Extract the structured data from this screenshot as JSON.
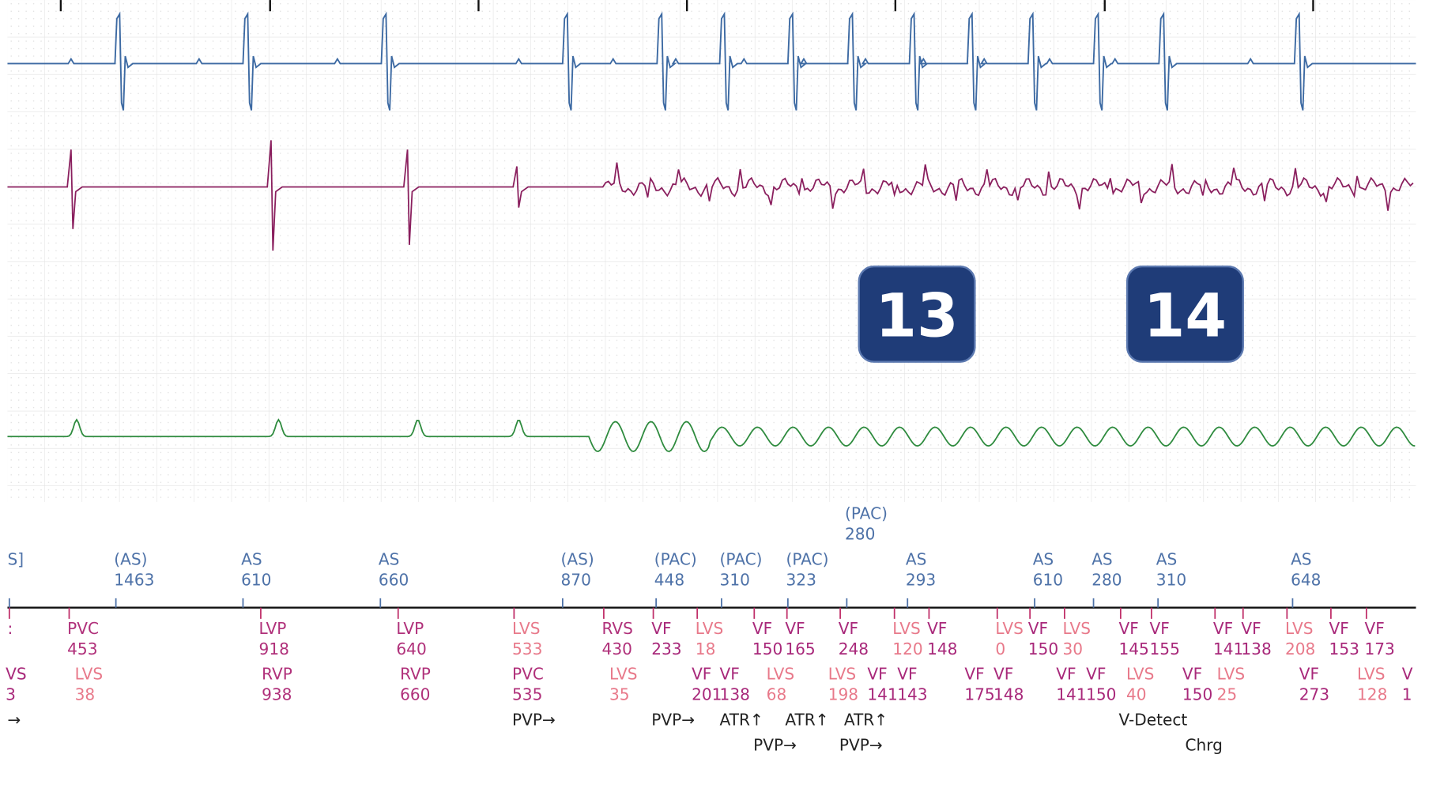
{
  "badges": [
    "13",
    "14"
  ],
  "atrial": [
    {
      "label": "S]"
    },
    {
      "label": "(AS)",
      "value": 1463
    },
    {
      "label": "AS",
      "value": 610
    },
    {
      "label": "AS",
      "value": 660
    },
    {
      "label": "(AS)",
      "value": 870
    },
    {
      "label": "(PAC)",
      "value": 448
    },
    {
      "label": "(PAC)",
      "value": 310
    },
    {
      "label": "(PAC)",
      "value": 323
    },
    {
      "label": "(PAC)",
      "value": 280
    },
    {
      "label": "AS",
      "value": 293
    },
    {
      "label": "AS",
      "value": 610
    },
    {
      "label": "AS",
      "value": 280
    },
    {
      "label": "AS",
      "value": 310
    },
    {
      "label": "AS",
      "value": 648
    }
  ],
  "ventricular_1": [
    {
      "label": ":"
    },
    {
      "label": "PVC",
      "value": 453
    },
    {
      "label": "LVP",
      "value": 918
    },
    {
      "label": "LVP",
      "value": 640
    },
    {
      "label": "LVS",
      "value": 533
    },
    {
      "label": "RVS",
      "value": 430
    },
    {
      "label": "VF",
      "value": 233
    },
    {
      "label": "LVS",
      "value": 18
    },
    {
      "label": "VF",
      "value": 150
    },
    {
      "label": "VF",
      "value": 165
    },
    {
      "label": "VF",
      "value": 248
    },
    {
      "label": "LVS",
      "value": 120
    },
    {
      "label": "VF",
      "value": 148
    },
    {
      "label": "LVS",
      "value": 0
    },
    {
      "label": "VF",
      "value": 150
    },
    {
      "label": "LVS",
      "value": 30
    },
    {
      "label": "VF",
      "value": 145
    },
    {
      "label": "VF",
      "value": 155
    },
    {
      "label": "VF",
      "value": 141
    },
    {
      "label": "VF",
      "value": 138
    },
    {
      "label": "LVS",
      "value": 208
    },
    {
      "label": "VF",
      "value": 153
    },
    {
      "label": "VF",
      "value": 173
    }
  ],
  "ventricular_2": [
    {
      "label": "VS",
      "value": 3
    },
    {
      "label": "LVS",
      "value": 38
    },
    {
      "label": "RVP",
      "value": 938
    },
    {
      "label": "RVP",
      "value": 660
    },
    {
      "label": "PVC",
      "value": 535
    },
    {
      "label": "LVS",
      "value": 35
    },
    {
      "label": "VF",
      "value": 201
    },
    {
      "label": "VF",
      "value": 138
    },
    {
      "label": "LVS",
      "value": 68
    },
    {
      "label": "LVS",
      "value": 198
    },
    {
      "label": "VF",
      "value": 141
    },
    {
      "label": "VF",
      "value": 143
    },
    {
      "label": "VF",
      "value": 175
    },
    {
      "label": "VF",
      "value": 148
    },
    {
      "label": "VF",
      "value": 141
    },
    {
      "label": "VF",
      "value": 150
    },
    {
      "label": "LVS",
      "value": 40
    },
    {
      "label": "VF",
      "value": 150
    },
    {
      "label": "LVS",
      "value": 25
    },
    {
      "label": "VF",
      "value": 273
    },
    {
      "label": "LVS",
      "value": 128
    },
    {
      "label": "V",
      "value": 1
    }
  ],
  "events_1": [
    "→",
    "PVP→",
    "PVP→",
    "ATR↑",
    "ATR↑",
    "ATR↑",
    "V-Detect"
  ],
  "events_2": [
    "PVP→",
    "PVP→",
    "Chrg"
  ]
}
